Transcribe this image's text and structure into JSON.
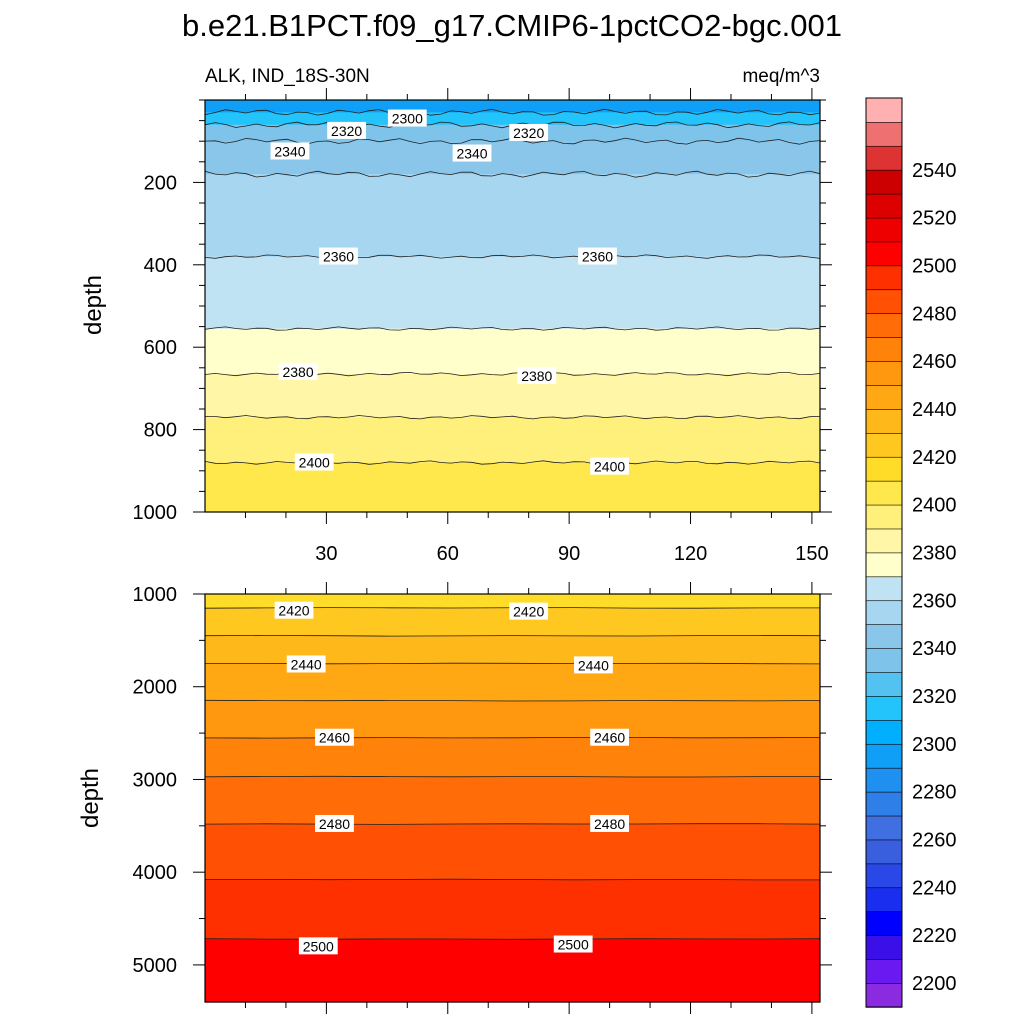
{
  "chart_data": {
    "type": "contour",
    "title": "b.e21.B1PCT.f09_g17.CMIP6-1pctCO2-bgc.001",
    "subtitle_left": "ALK, IND_18S-30N",
    "subtitle_right": "meq/m^3",
    "colorbar": {
      "levels": [
        2190,
        2200,
        2210,
        2220,
        2230,
        2240,
        2250,
        2260,
        2270,
        2280,
        2290,
        2300,
        2310,
        2320,
        2330,
        2340,
        2350,
        2360,
        2370,
        2380,
        2390,
        2400,
        2410,
        2420,
        2430,
        2440,
        2450,
        2460,
        2470,
        2480,
        2490,
        2500,
        2510,
        2520,
        2530,
        2540,
        2550,
        2560
      ],
      "colors": [
        "#8a2be2",
        "#6a1af0",
        "#3a0fe8",
        "#0000ff",
        "#1a2ef0",
        "#2a48e8",
        "#3a5fde",
        "#3f6fe0",
        "#2f7fe8",
        "#1f8ff0",
        "#0f9ff7",
        "#00b0ff",
        "#22c4fb",
        "#54c2f0",
        "#7ec4ea",
        "#8ac6ea",
        "#a6d6f0",
        "#bfe3f3",
        "#ffffcc",
        "#fff6a8",
        "#fff07c",
        "#ffe84c",
        "#ffdc28",
        "#ffc820",
        "#ffb81a",
        "#ffa814",
        "#ff980e",
        "#ff820a",
        "#ff6c08",
        "#ff5004",
        "#ff3000",
        "#ff0000",
        "#ee0000",
        "#dd0000",
        "#cc0000",
        "#dd3333",
        "#ee7070",
        "#ffb0b0"
      ],
      "tick_labels": [
        "2200",
        "2220",
        "2240",
        "2260",
        "2280",
        "2300",
        "2320",
        "2340",
        "2360",
        "2380",
        "2400",
        "2420",
        "2440",
        "2460",
        "2480",
        "2500",
        "2520",
        "2540"
      ]
    },
    "upper_panel": {
      "ylabel": "depth",
      "ylim": [
        0,
        1000
      ],
      "xlim": [
        0,
        152
      ],
      "xticks": [
        "30",
        "60",
        "90",
        "120",
        "150"
      ],
      "yticks": [
        "200",
        "400",
        "600",
        "800",
        "1000"
      ],
      "bands": [
        {
          "top": 0,
          "bottom": 30,
          "value": 2295
        },
        {
          "top": 30,
          "bottom": 60,
          "value": 2315
        },
        {
          "top": 60,
          "bottom": 100,
          "value": 2335
        },
        {
          "top": 100,
          "bottom": 180,
          "value": 2345
        },
        {
          "top": 180,
          "bottom": 380,
          "value": 2355
        },
        {
          "top": 380,
          "bottom": 555,
          "value": 2365
        },
        {
          "top": 555,
          "bottom": 665,
          "value": 2375
        },
        {
          "top": 665,
          "bottom": 770,
          "value": 2385
        },
        {
          "top": 770,
          "bottom": 880,
          "value": 2395
        },
        {
          "top": 880,
          "bottom": 1000,
          "value": 2405
        }
      ],
      "contour_labels": [
        {
          "text": "2300",
          "x": 50,
          "depth": 45
        },
        {
          "text": "2320",
          "x": 35,
          "depth": 75
        },
        {
          "text": "2320",
          "x": 80,
          "depth": 80
        },
        {
          "text": "2340",
          "x": 21,
          "depth": 125
        },
        {
          "text": "2340",
          "x": 66,
          "depth": 130
        },
        {
          "text": "2360",
          "x": 33,
          "depth": 380
        },
        {
          "text": "2360",
          "x": 97,
          "depth": 380
        },
        {
          "text": "2380",
          "x": 23,
          "depth": 660
        },
        {
          "text": "2380",
          "x": 82,
          "depth": 670
        },
        {
          "text": "2400",
          "x": 27,
          "depth": 880
        },
        {
          "text": "2400",
          "x": 100,
          "depth": 890
        }
      ]
    },
    "lower_panel": {
      "ylabel": "depth",
      "ylim": [
        1000,
        5400
      ],
      "xlim": [
        0,
        152
      ],
      "yticks": [
        "1000",
        "2000",
        "3000",
        "4000",
        "5000"
      ],
      "bands": [
        {
          "top": 1000,
          "bottom": 1150,
          "value": 2415
        },
        {
          "top": 1150,
          "bottom": 1450,
          "value": 2425
        },
        {
          "top": 1450,
          "bottom": 1750,
          "value": 2435
        },
        {
          "top": 1750,
          "bottom": 2150,
          "value": 2445
        },
        {
          "top": 2150,
          "bottom": 2550,
          "value": 2455
        },
        {
          "top": 2550,
          "bottom": 2970,
          "value": 2465
        },
        {
          "top": 2970,
          "bottom": 3480,
          "value": 2475
        },
        {
          "top": 3480,
          "bottom": 4080,
          "value": 2485
        },
        {
          "top": 4080,
          "bottom": 4720,
          "value": 2495
        },
        {
          "top": 4720,
          "bottom": 5400,
          "value": 2505
        }
      ],
      "contour_labels": [
        {
          "text": "2420",
          "x": 22,
          "depth": 1180
        },
        {
          "text": "2420",
          "x": 80,
          "depth": 1190
        },
        {
          "text": "2440",
          "x": 25,
          "depth": 1760
        },
        {
          "text": "2440",
          "x": 96,
          "depth": 1770
        },
        {
          "text": "2460",
          "x": 32,
          "depth": 2550
        },
        {
          "text": "2460",
          "x": 100,
          "depth": 2550
        },
        {
          "text": "2480",
          "x": 32,
          "depth": 3480
        },
        {
          "text": "2480",
          "x": 100,
          "depth": 3480
        },
        {
          "text": "2500",
          "x": 28,
          "depth": 4800
        },
        {
          "text": "2500",
          "x": 91,
          "depth": 4780
        }
      ]
    }
  }
}
